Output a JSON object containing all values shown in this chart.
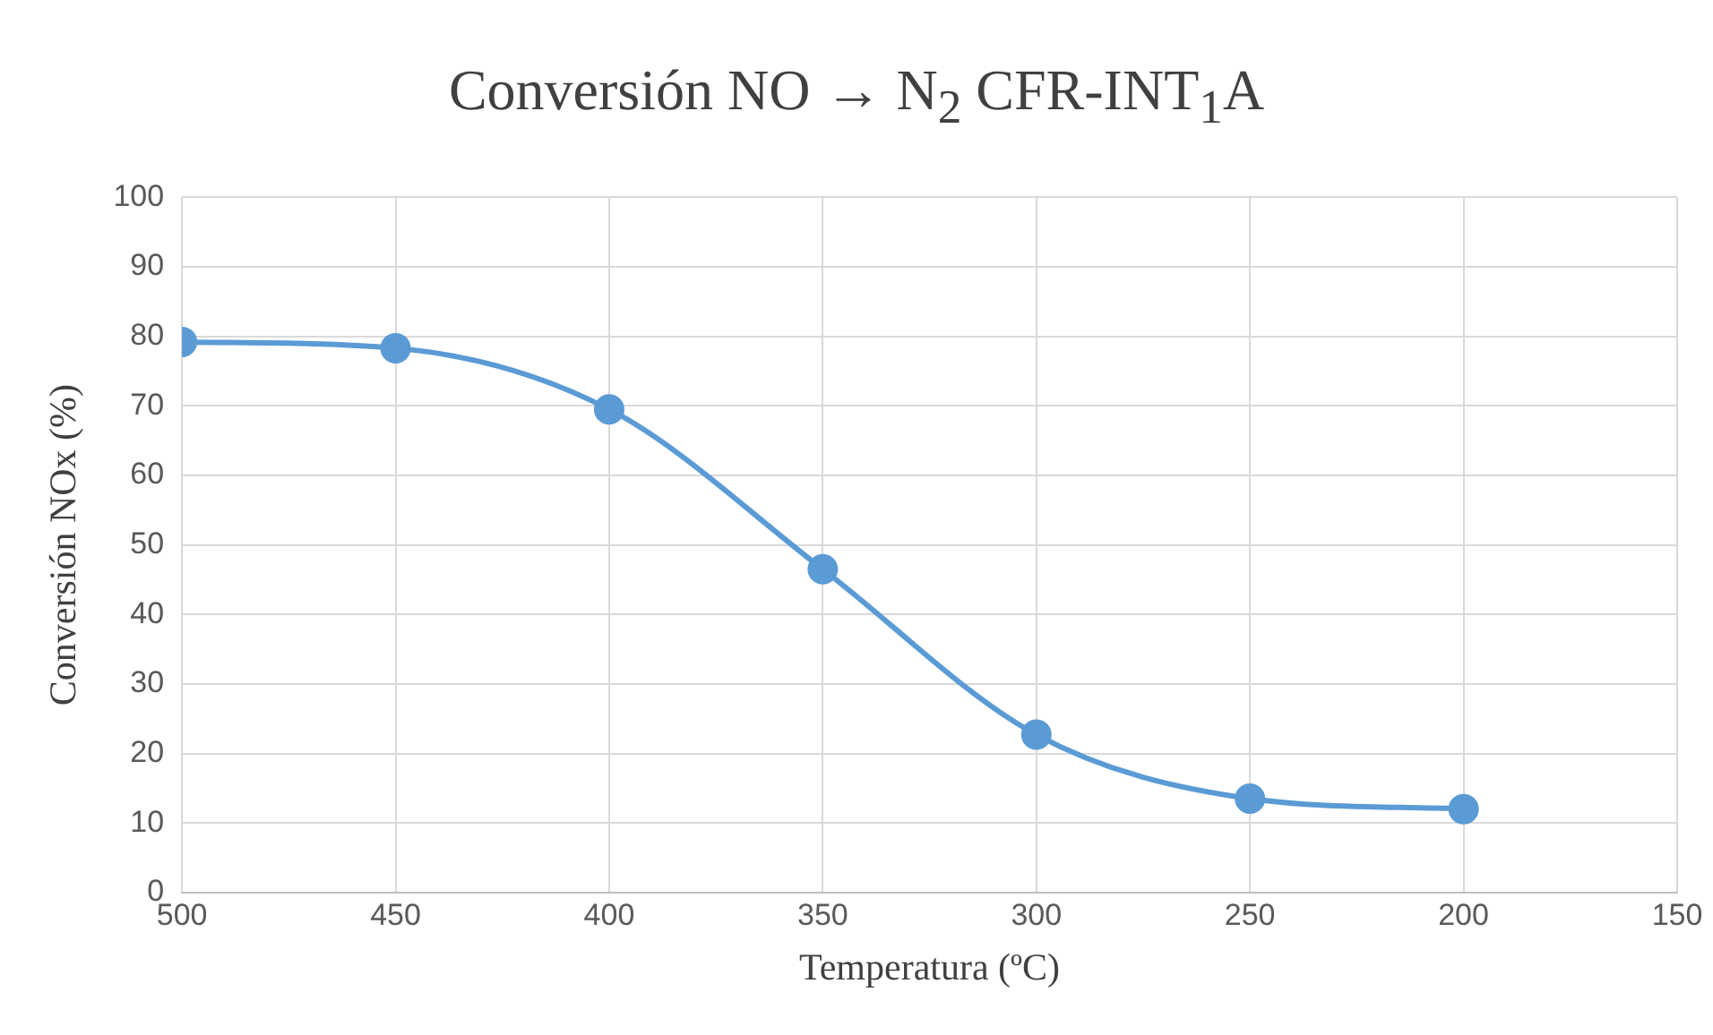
{
  "chart_data": {
    "type": "line",
    "title": "Conversión NO → N$_{2}$ CFR-INT$_{1}$A",
    "xlabel": "Temperatura (ºC)",
    "ylabel": "Conversión NOx (%)",
    "x": [
      500,
      450,
      400,
      350,
      300,
      250,
      200
    ],
    "series": [
      {
        "color": "#5b9bd5",
        "values": [
          79.2,
          78.3,
          69.5,
          46.5,
          22.7,
          13.5,
          12
        ]
      }
    ],
    "xlim": [
      500,
      150
    ],
    "xticks": [
      500,
      450,
      400,
      350,
      300,
      250,
      200,
      150
    ],
    "ylim": [
      0,
      100
    ],
    "yticks": [
      0,
      10,
      20,
      30,
      40,
      50,
      60,
      70,
      80,
      90,
      100
    ],
    "grid": true,
    "marker": "circle",
    "line_style": "solid"
  }
}
